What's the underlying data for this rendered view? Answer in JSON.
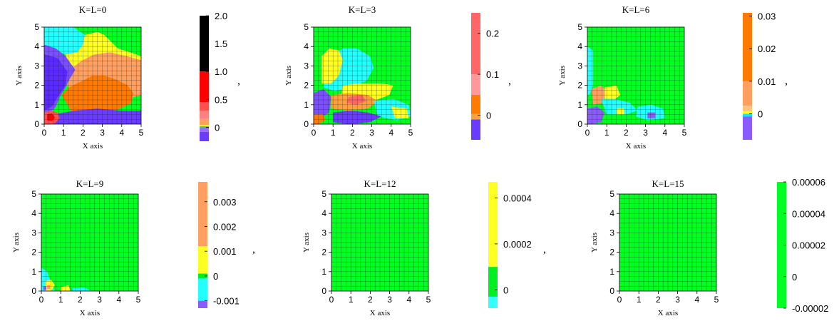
{
  "chart_data": [
    {
      "type": "heatmap",
      "title": "K=L=0",
      "xlabel": "X axis",
      "ylabel": "Y axis",
      "xlim": [
        0,
        5
      ],
      "ylim": [
        0,
        5
      ],
      "x_ticks": [
        "0",
        "1",
        "2",
        "3",
        "4",
        "5"
      ],
      "y_ticks": [
        "0",
        "1",
        "2",
        "3",
        "4",
        "5"
      ],
      "grid": true,
      "colorbar": {
        "range": [
          -0.25,
          2.0
        ],
        "ticks": [
          {
            "value": 0,
            "label": "0"
          },
          {
            "value": 0.5,
            "label": "0.5"
          },
          {
            "value": 1.0,
            "label": "1.0"
          },
          {
            "value": 1.5,
            "label": "1.5"
          },
          {
            "value": 2.0,
            "label": "2.0"
          }
        ],
        "bands": [
          {
            "from": -0.25,
            "to": -0.08,
            "color": "#6a3cff"
          },
          {
            "from": -0.08,
            "to": 0,
            "color": "#9a6bff"
          },
          {
            "from": 0,
            "to": 0.02,
            "color": "#00ff22"
          },
          {
            "from": 0.02,
            "to": 0.04,
            "color": "#ffff22"
          },
          {
            "from": 0.04,
            "to": 0.15,
            "color": "#ffa060"
          },
          {
            "from": 0.15,
            "to": 0.3,
            "color": "#ff8080"
          },
          {
            "from": 0.3,
            "to": 0.45,
            "color": "#ff5050"
          },
          {
            "from": 0.45,
            "to": 1.0,
            "color": "#ff0000"
          },
          {
            "from": 1.0,
            "to": 2.0,
            "color": "#000000"
          }
        ]
      },
      "trailing_mark": ","
    },
    {
      "type": "heatmap",
      "title": "K=L=3",
      "xlabel": "X axis",
      "ylabel": "Y axis",
      "xlim": [
        0,
        5
      ],
      "ylim": [
        0,
        5
      ],
      "x_ticks": [
        "0",
        "1",
        "2",
        "3",
        "4",
        "5"
      ],
      "y_ticks": [
        "0",
        "1",
        "2",
        "3",
        "4",
        "5"
      ],
      "grid": true,
      "colorbar": {
        "range": [
          -0.06,
          0.25
        ],
        "ticks": [
          {
            "value": 0,
            "label": "0"
          },
          {
            "value": 0.1,
            "label": "0.1"
          },
          {
            "value": 0.2,
            "label": "0.2"
          }
        ],
        "bands": [
          {
            "from": -0.06,
            "to": -0.01,
            "color": "#6a3cff"
          },
          {
            "from": -0.01,
            "to": 0.003,
            "color": "#ffa040"
          },
          {
            "from": 0.003,
            "to": 0.05,
            "color": "#ff7a00"
          },
          {
            "from": 0.05,
            "to": 0.1,
            "color": "#ff9999"
          },
          {
            "from": 0.1,
            "to": 0.25,
            "color": "#ff6666"
          }
        ]
      },
      "trailing_mark": ","
    },
    {
      "type": "heatmap",
      "title": "K=L=6",
      "xlabel": "X axis",
      "ylabel": "Y axis",
      "xlim": [
        0,
        5
      ],
      "ylim": [
        0,
        5
      ],
      "x_ticks": [
        "0",
        "1",
        "2",
        "3",
        "4",
        "5"
      ],
      "y_ticks": [
        "0",
        "1",
        "2",
        "3",
        "4",
        "5"
      ],
      "grid": true,
      "colorbar": {
        "range": [
          -0.008,
          0.031
        ],
        "ticks": [
          {
            "value": 0,
            "label": "0"
          },
          {
            "value": 0.01,
            "label": "0.01"
          },
          {
            "value": 0.02,
            "label": "0.02"
          },
          {
            "value": 0.03,
            "label": "0.03"
          }
        ],
        "bands": [
          {
            "from": -0.008,
            "to": -0.0008,
            "color": "#8a5cff"
          },
          {
            "from": -0.0008,
            "to": 0,
            "color": "#22ddff"
          },
          {
            "from": 0,
            "to": 0.0008,
            "color": "#ffff22"
          },
          {
            "from": 0.0008,
            "to": 0.0025,
            "color": "#ffc080"
          },
          {
            "from": 0.0025,
            "to": 0.01,
            "color": "#ffa060"
          },
          {
            "from": 0.01,
            "to": 0.031,
            "color": "#ff7a00"
          }
        ]
      },
      "trailing_mark": ","
    },
    {
      "type": "heatmap",
      "title": "K=L=9",
      "xlabel": "X axis",
      "ylabel": "Y axis",
      "xlim": [
        0,
        5
      ],
      "ylim": [
        0,
        5
      ],
      "x_ticks": [
        "0",
        "1",
        "2",
        "3",
        "4",
        "5"
      ],
      "y_ticks": [
        "0",
        "1",
        "2",
        "3",
        "4",
        "5"
      ],
      "grid": true,
      "colorbar": {
        "range": [
          -0.0013,
          0.0038
        ],
        "ticks": [
          {
            "value": -0.001,
            "label": "-0.001"
          },
          {
            "value": 0,
            "label": "0"
          },
          {
            "value": 0.001,
            "label": "0.001"
          },
          {
            "value": 0.002,
            "label": "0.002"
          },
          {
            "value": 0.003,
            "label": "0.003"
          }
        ],
        "bands": [
          {
            "from": -0.0013,
            "to": -0.001,
            "color": "#8a5cff"
          },
          {
            "from": -0.001,
            "to": -0.0001,
            "color": "#22ffff"
          },
          {
            "from": -0.0001,
            "to": 0.0001,
            "color": "#00ee22"
          },
          {
            "from": 0.0001,
            "to": 0.0012,
            "color": "#ffff22"
          },
          {
            "from": 0.0012,
            "to": 0.0038,
            "color": "#ffa060"
          }
        ]
      },
      "trailing_mark": ","
    },
    {
      "type": "heatmap",
      "title": "K=L=12",
      "xlabel": "X axis",
      "ylabel": "Y axis",
      "xlim": [
        0,
        5
      ],
      "ylim": [
        0,
        5
      ],
      "x_ticks": [
        "0",
        "1",
        "2",
        "3",
        "4",
        "5"
      ],
      "y_ticks": [
        "0",
        "1",
        "2",
        "3",
        "4",
        "5"
      ],
      "grid": true,
      "colorbar": {
        "range": [
          -8e-05,
          0.00047
        ],
        "ticks": [
          {
            "value": 0,
            "label": "0"
          },
          {
            "value": 0.0002,
            "label": "0.0002"
          },
          {
            "value": 0.0004,
            "label": "0.0004"
          }
        ],
        "bands": [
          {
            "from": -8e-05,
            "to": -3e-05,
            "color": "#33ffff"
          },
          {
            "from": -3e-05,
            "to": 0.0001,
            "color": "#00ee22"
          },
          {
            "from": 0.0001,
            "to": 0.00047,
            "color": "#ffff22"
          }
        ]
      },
      "trailing_mark": ","
    },
    {
      "type": "heatmap",
      "title": "K=L=15",
      "xlabel": "X axis",
      "ylabel": "Y axis",
      "xlim": [
        0,
        5
      ],
      "ylim": [
        0,
        5
      ],
      "x_ticks": [
        "0",
        "1",
        "2",
        "3",
        "4",
        "5"
      ],
      "y_ticks": [
        "0",
        "1",
        "2",
        "3",
        "4",
        "5"
      ],
      "grid": true,
      "colorbar": {
        "range": [
          -2e-05,
          6e-05
        ],
        "ticks": [
          {
            "value": -2e-05,
            "label": "-0.00002"
          },
          {
            "value": 0,
            "label": "0"
          },
          {
            "value": 2e-05,
            "label": "0.00002"
          },
          {
            "value": 4e-05,
            "label": "0.00004"
          },
          {
            "value": 6e-05,
            "label": "0.00006"
          }
        ],
        "bands": [
          {
            "from": -2e-05,
            "to": 6e-05,
            "color": "#00ff22"
          }
        ]
      },
      "trailing_mark": ""
    }
  ],
  "colors": {
    "field_green": "#00ff22",
    "grid_line": "#1a1a1a",
    "axis": "#000000"
  }
}
